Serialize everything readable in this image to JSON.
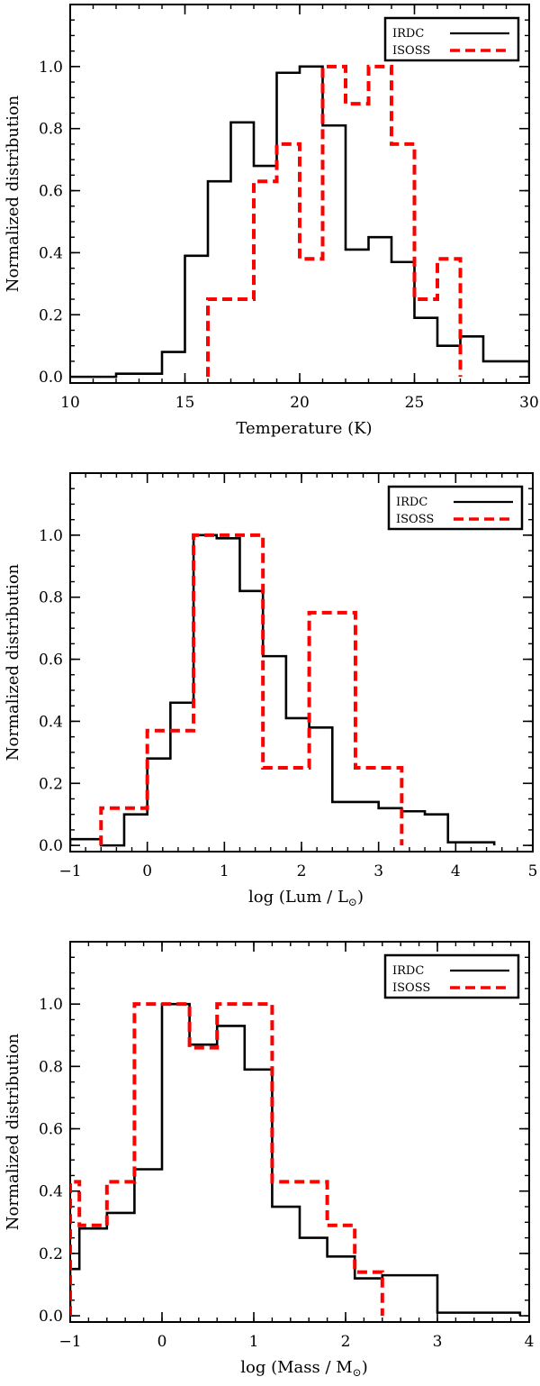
{
  "chart_data": [
    {
      "type": "histogram",
      "xlabel": "Temperature (K)",
      "ylabel": "Normalized distribution",
      "xlim": [
        10,
        30
      ],
      "ylim": [
        -0.02,
        1.2
      ],
      "xticks": [
        10,
        15,
        20,
        25,
        30
      ],
      "yticks": [
        0.0,
        0.2,
        0.4,
        0.6,
        0.8,
        1.0
      ],
      "ytick_labels": [
        "0.0",
        "0.2",
        "0.4",
        "0.6",
        "0.8",
        "1.0"
      ],
      "legend": {
        "position": "top-right",
        "entries": [
          "IRDC",
          "ISOSS"
        ]
      },
      "series": [
        {
          "name": "IRDC",
          "color": "#000000",
          "style": "solid",
          "edges": [
            10,
            11,
            12,
            13,
            14,
            15,
            16,
            17,
            18,
            19,
            20,
            21,
            22,
            23,
            24,
            25,
            26,
            27,
            28,
            29,
            30
          ],
          "values": [
            0,
            0,
            0.01,
            0.01,
            0.08,
            0.39,
            0.63,
            0.82,
            0.68,
            0.98,
            1.0,
            0.81,
            0.41,
            0.45,
            0.37,
            0.19,
            0.1,
            0.13,
            0.05,
            0.05
          ]
        },
        {
          "name": "ISOSS",
          "color": "#ff0000",
          "style": "dashed",
          "edges": [
            16,
            18,
            19,
            20,
            21,
            22,
            23,
            24,
            25,
            26,
            27
          ],
          "values": [
            0.25,
            0.63,
            0.75,
            0.38,
            1.0,
            0.88,
            1.0,
            0.75,
            0.25,
            0.38
          ]
        }
      ]
    },
    {
      "type": "histogram",
      "xlabel": "log (Lum / L",
      "xlabel_suffix": ")",
      "ylabel": "Normalized distribution",
      "xlim": [
        -1,
        5
      ],
      "ylim": [
        -0.02,
        1.2
      ],
      "xticks": [
        -1,
        0,
        1,
        2,
        3,
        4,
        5
      ],
      "yticks": [
        0.0,
        0.2,
        0.4,
        0.6,
        0.8,
        1.0
      ],
      "ytick_labels": [
        "0.0",
        "0.2",
        "0.4",
        "0.6",
        "0.8",
        "1.0"
      ],
      "legend": {
        "position": "top-right",
        "entries": [
          "IRDC",
          "ISOSS"
        ]
      },
      "series": [
        {
          "name": "IRDC",
          "color": "#000000",
          "style": "solid",
          "edges": [
            -1,
            -0.6,
            -0.3,
            0,
            0.3,
            0.6,
            0.9,
            1.2,
            1.5,
            1.8,
            2.1,
            2.4,
            2.7,
            3.0,
            3.3,
            3.6,
            3.9,
            4.2,
            4.5
          ],
          "values": [
            0.02,
            0,
            0.1,
            0.28,
            0.46,
            1.0,
            0.99,
            0.82,
            0.61,
            0.41,
            0.38,
            0.14,
            0.14,
            0.12,
            0.11,
            0.1,
            0.01,
            0.01
          ]
        },
        {
          "name": "ISOSS",
          "color": "#ff0000",
          "style": "dashed",
          "edges": [
            -0.6,
            0,
            0.6,
            1.5,
            2.1,
            2.7,
            3.3
          ],
          "values": [
            0.12,
            0.37,
            1.0,
            0.25,
            0.75,
            0.25
          ]
        }
      ]
    },
    {
      "type": "histogram",
      "xlabel": "log (Mass / M",
      "xlabel_suffix": ")",
      "ylabel": "Normalized distribution",
      "xlim": [
        -1,
        4
      ],
      "ylim": [
        -0.02,
        1.2
      ],
      "xticks": [
        -1,
        0,
        1,
        2,
        3,
        4
      ],
      "yticks": [
        0.0,
        0.2,
        0.4,
        0.6,
        0.8,
        1.0
      ],
      "ytick_labels": [
        "0.0",
        "0.2",
        "0.4",
        "0.6",
        "0.8",
        "1.0"
      ],
      "legend": {
        "position": "top-right",
        "entries": [
          "IRDC",
          "ISOSS"
        ]
      },
      "series": [
        {
          "name": "IRDC",
          "color": "#000000",
          "style": "solid",
          "edges": [
            -1,
            -0.9,
            -0.6,
            -0.3,
            0,
            0.3,
            0.6,
            0.9,
            1.2,
            1.5,
            1.8,
            2.1,
            2.4,
            2.7,
            3.0,
            3.3,
            3.6,
            3.9
          ],
          "values": [
            0.15,
            0.28,
            0.33,
            0.47,
            1.0,
            0.87,
            0.93,
            0.79,
            0.35,
            0.25,
            0.19,
            0.12,
            0.13,
            0.13,
            0.01,
            0.01,
            0.01
          ]
        },
        {
          "name": "ISOSS",
          "color": "#ff0000",
          "style": "dashed",
          "edges": [
            -1,
            -0.9,
            -0.6,
            -0.3,
            0.3,
            0.6,
            1.2,
            1.8,
            2.1,
            2.4
          ],
          "values": [
            0.43,
            0.29,
            0.43,
            1.0,
            0.86,
            1.0,
            0.43,
            0.29,
            0.14
          ]
        }
      ]
    }
  ]
}
